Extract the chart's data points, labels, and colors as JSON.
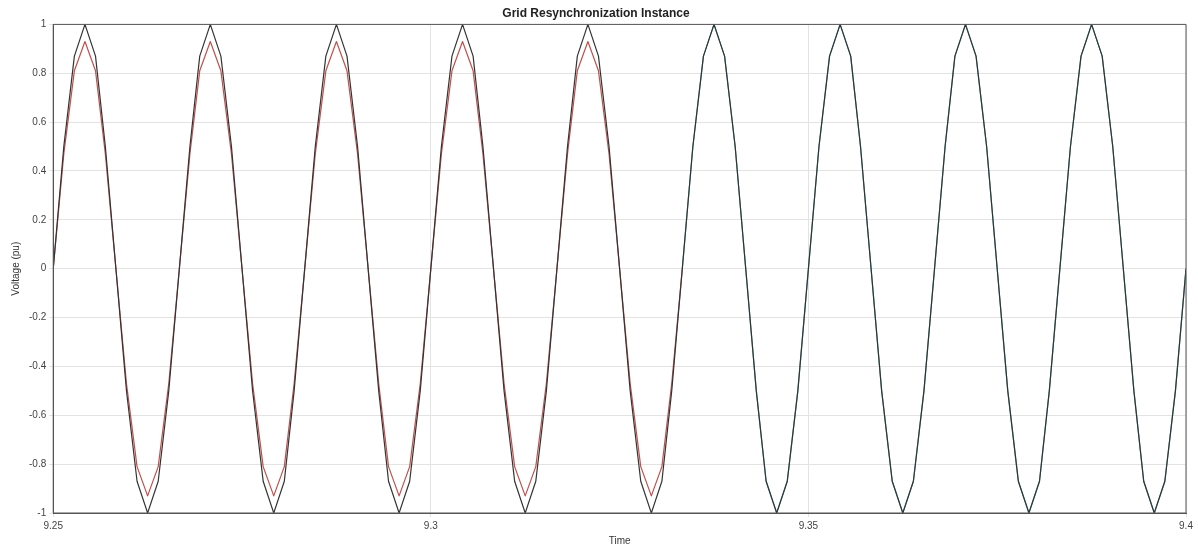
{
  "chart_data": {
    "type": "line",
    "title": "Grid Resynchronization Instance",
    "xlabel": "Time",
    "ylabel": "Voltage (pu)",
    "xlim": [
      9.25,
      9.4
    ],
    "xticks": [
      9.25,
      9.3,
      9.35,
      9.4
    ],
    "ylim": [
      -1,
      1
    ],
    "yticks": [
      -1,
      -0.8,
      -0.6,
      -0.4,
      -0.2,
      0,
      0.2,
      0.4,
      0.6,
      0.8,
      1
    ],
    "grid": true,
    "line_style": "solid",
    "x": [
      9.25,
      9.2514,
      9.2528,
      9.2542,
      9.2556,
      9.2569,
      9.2583,
      9.2597,
      9.2611,
      9.2625,
      9.2639,
      9.2653,
      9.2667,
      9.2681,
      9.2694,
      9.2708,
      9.2722,
      9.2736,
      9.275,
      9.2764,
      9.2778,
      9.2792,
      9.2806,
      9.2819,
      9.2833,
      9.2847,
      9.2861,
      9.2875,
      9.2889,
      9.2903,
      9.2917,
      9.2931,
      9.2944,
      9.2958,
      9.2972,
      9.2986,
      9.3,
      9.3014,
      9.3028,
      9.3042,
      9.3056,
      9.3069,
      9.3083,
      9.3097,
      9.3111,
      9.3125,
      9.3139,
      9.3153,
      9.3167,
      9.3181,
      9.3194,
      9.3208,
      9.3222,
      9.3236,
      9.325,
      9.3264,
      9.3278,
      9.3292,
      9.3306,
      9.3319,
      9.3333,
      9.3347,
      9.3361,
      9.3375,
      9.3389,
      9.3403,
      9.3417,
      9.3431,
      9.3444,
      9.3458,
      9.3472,
      9.3486,
      9.35,
      9.3514,
      9.3528,
      9.3542,
      9.3556,
      9.3569,
      9.3583,
      9.3597,
      9.3611,
      9.3625,
      9.3639,
      9.3653,
      9.3667,
      9.3681,
      9.3694,
      9.3708,
      9.3722,
      9.3736,
      9.375,
      9.3764,
      9.3778,
      9.3792,
      9.3806,
      9.3819,
      9.3833,
      9.3847,
      9.3861,
      9.3875,
      9.3889,
      9.3903,
      9.3917,
      9.3931,
      9.3944,
      9.3958,
      9.3972,
      9.3986,
      9.4
    ],
    "series": [
      {
        "color": "#333333",
        "values": [
          0,
          0.5,
          0.87,
          1,
          0.87,
          0.5,
          0,
          -0.5,
          -0.87,
          -1,
          -0.87,
          -0.5,
          0,
          0.5,
          0.87,
          1,
          0.87,
          0.5,
          0,
          -0.5,
          -0.87,
          -1,
          -0.87,
          -0.5,
          0,
          0.5,
          0.87,
          1,
          0.87,
          0.5,
          0,
          -0.5,
          -0.87,
          -1,
          -0.87,
          -0.5,
          0,
          0.5,
          0.87,
          1,
          0.87,
          0.5,
          0,
          -0.5,
          -0.87,
          -1,
          -0.87,
          -0.5,
          0,
          0.5,
          0.87,
          1,
          0.87,
          0.5,
          0,
          -0.5,
          -0.87,
          -1,
          -0.87,
          -0.5,
          0,
          0.5,
          0.87,
          1,
          0.87,
          0.5,
          0,
          -0.5,
          -0.87,
          -1,
          -0.87,
          -0.5,
          0,
          0.5,
          0.87,
          1,
          0.87,
          0.5,
          0,
          -0.5,
          -0.87,
          -1,
          -0.87,
          -0.5,
          0,
          0.5,
          0.87,
          1,
          0.87,
          0.5,
          0,
          -0.5,
          -0.87,
          -1,
          -0.87,
          -0.5,
          0,
          0.5,
          0.87,
          1,
          0.87,
          0.5,
          0,
          -0.5,
          -0.87,
          -1,
          -0.87,
          -0.5,
          0
        ]
      },
      {
        "color": "#c0504d",
        "values": [
          0,
          0.47,
          0.81,
          0.93,
          0.81,
          0.47,
          0,
          -0.47,
          -0.81,
          -0.93,
          -0.81,
          -0.47,
          0,
          0.47,
          0.81,
          0.93,
          0.81,
          0.47,
          0,
          -0.47,
          -0.81,
          -0.93,
          -0.81,
          -0.47,
          0,
          0.47,
          0.81,
          0.93,
          0.81,
          0.47,
          0,
          -0.47,
          -0.81,
          -0.93,
          -0.81,
          -0.47,
          0,
          0.47,
          0.81,
          0.93,
          0.81,
          0.47,
          0,
          -0.47,
          -0.81,
          -0.93,
          -0.81,
          -0.47,
          0,
          0.47,
          0.81,
          0.93,
          0.81,
          0.47,
          0,
          -0.47,
          -0.81,
          -0.93,
          -0.81,
          -0.47,
          0,
          null,
          null,
          null,
          null,
          null,
          null,
          null,
          null,
          null,
          null,
          null,
          null,
          null,
          null,
          null,
          null,
          null,
          null,
          null,
          null,
          null,
          null,
          null,
          null,
          null,
          null,
          null,
          null,
          null,
          null,
          null,
          null,
          null,
          null,
          null,
          null,
          null,
          null,
          null,
          null,
          null,
          null,
          null,
          null,
          null,
          null,
          null,
          null
        ]
      },
      {
        "color": "#4aa8a8",
        "values": [
          null,
          null,
          null,
          null,
          null,
          null,
          null,
          null,
          null,
          null,
          null,
          null,
          null,
          null,
          null,
          null,
          null,
          null,
          null,
          null,
          null,
          null,
          null,
          null,
          null,
          null,
          null,
          null,
          null,
          null,
          null,
          null,
          null,
          null,
          null,
          null,
          null,
          null,
          null,
          null,
          null,
          null,
          null,
          null,
          null,
          null,
          null,
          null,
          null,
          null,
          null,
          null,
          null,
          null,
          null,
          null,
          null,
          null,
          null,
          null,
          0,
          0.5,
          0.87,
          1,
          0.87,
          0.5,
          0,
          -0.5,
          -0.87,
          -1,
          -0.87,
          -0.5,
          0,
          0.5,
          0.87,
          1,
          0.87,
          0.5,
          0,
          -0.5,
          -0.87,
          -1,
          -0.87,
          -0.5,
          0,
          0.5,
          0.87,
          1,
          0.87,
          0.5,
          0,
          -0.5,
          -0.87,
          -1,
          -0.87,
          -0.5,
          0,
          0.5,
          0.87,
          1,
          0.87,
          0.5,
          0,
          -0.5,
          -0.87,
          -1,
          -0.87,
          -0.5,
          0
        ]
      }
    ]
  }
}
